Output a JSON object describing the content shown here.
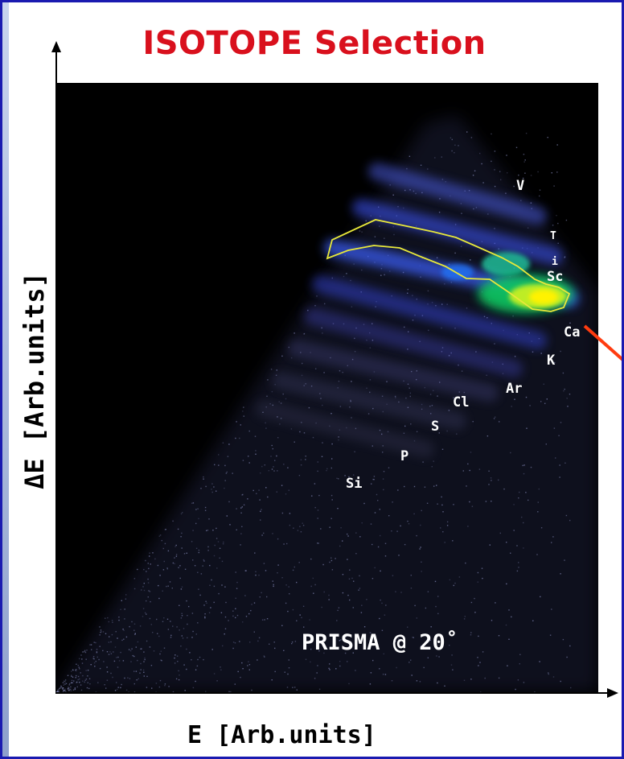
{
  "title": "ISOTOPE Selection",
  "x_axis_label": "E [Arb.units]",
  "y_axis_label": "ΔE [Arb.units]",
  "annotation": "PRISMA @ 20˚",
  "element_labels": {
    "v": "V",
    "ti_t": "T",
    "ti_i": "i",
    "sc": "Sc",
    "ca": "Ca",
    "k": "K",
    "ar": "Ar",
    "cl": "Cl",
    "s": "S",
    "p": "P",
    "si": "Si"
  },
  "colors": {
    "title": "#d9101d",
    "frame_border": "#1a1ab0",
    "plot_background": "#000000",
    "gate_outline": "#e8e83a",
    "arrow": "#ff3c10"
  },
  "chart_data": {
    "type": "heatmap",
    "title": "ISOTOPE Selection",
    "xlabel": "E [Arb.units]",
    "ylabel": "ΔE [Arb.units]",
    "grid": false,
    "legend": "none",
    "annotations": [
      "PRISMA @ 20˚"
    ],
    "series": [
      {
        "name": "Si"
      },
      {
        "name": "P"
      },
      {
        "name": "S"
      },
      {
        "name": "Cl"
      },
      {
        "name": "Ar"
      },
      {
        "name": "K"
      },
      {
        "name": "Ca"
      },
      {
        "name": "Sc"
      },
      {
        "name": "Ti"
      },
      {
        "name": "V"
      }
    ],
    "highlighted": "Ca"
  }
}
